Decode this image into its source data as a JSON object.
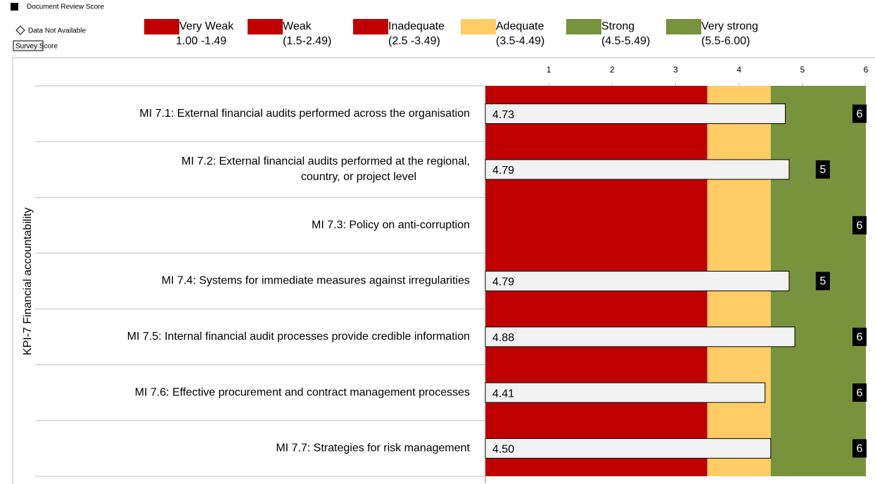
{
  "chart_data": {
    "type": "bar",
    "orientation": "horizontal",
    "y_axis_label": "KPI-7 Financial accountability",
    "legend_markers": [
      "Document Review Score",
      "Data Not Available",
      "Survey Score"
    ],
    "rating_legend": [
      {
        "name": "Very Weak",
        "range": "1.00 -1.49",
        "color": "#c00000"
      },
      {
        "name": "Weak",
        "range": "(1.5-2.49)",
        "color": "#c00000"
      },
      {
        "name": "Inadequate",
        "range": "(2.5 -3.49)",
        "color": "#c00000"
      },
      {
        "name": "Adequate",
        "range": "(3.5-4.49)",
        "color": "#ffcc66"
      },
      {
        "name": "Strong",
        "range": "(4.5-5.49)",
        "color": "#77933c"
      },
      {
        "name": "Very strong",
        "range": "(5.5-6.00)",
        "color": "#77933c"
      }
    ],
    "zones": [
      {
        "from": 0,
        "to": 3.5,
        "color": "#c00000"
      },
      {
        "from": 3.5,
        "to": 4.5,
        "color": "#ffcc66"
      },
      {
        "from": 4.5,
        "to": 6,
        "color": "#77933c"
      }
    ],
    "categories": [
      "MI 7.1: External financial audits performed across the organisation",
      "MI 7.2: External financial audits performed at the regional, country, or project level",
      "MI 7.3: Policy on anti-corruption",
      "MI 7.4: Systems for immediate measures against irregularities",
      "MI 7.5: Internal financial audit processes provide credible information",
      "MI 7.6: Effective procurement and contract management processes",
      "MI 7.7: Strategies for risk management"
    ],
    "series": [
      {
        "name": "Survey Score",
        "color": "#f2f2f2",
        "values": [
          4.73,
          4.79,
          null,
          4.79,
          4.88,
          4.41,
          4.5
        ],
        "value_labels": [
          "4.73",
          "4.79",
          null,
          "4.79",
          "4.88",
          "4.41",
          "4.50"
        ]
      },
      {
        "name": "Document Review Score",
        "color": "#000000",
        "values": [
          6,
          5,
          6,
          5,
          6,
          6,
          6
        ]
      }
    ],
    "xlim": [
      0,
      6
    ],
    "xticks": [
      1,
      2,
      3,
      4,
      5,
      6
    ]
  }
}
